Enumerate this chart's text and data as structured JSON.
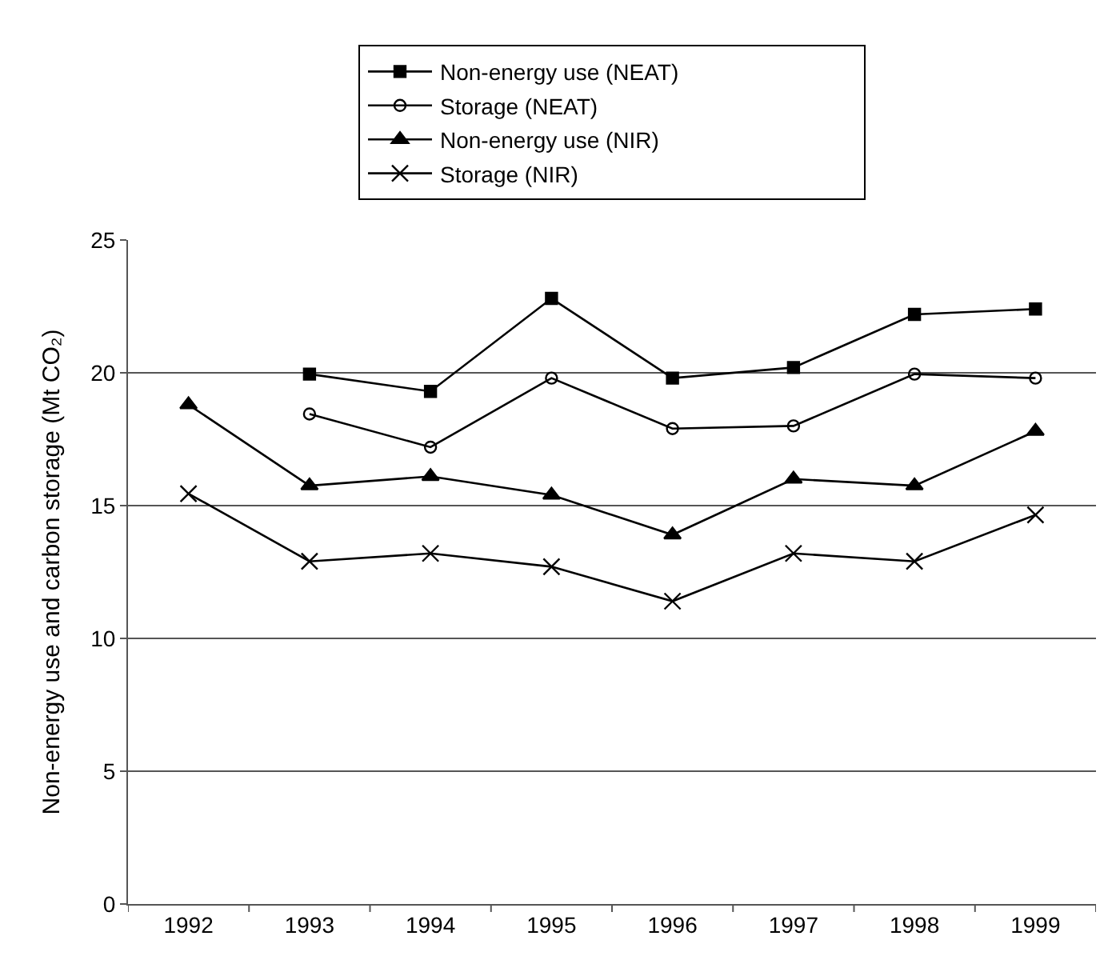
{
  "chart_data": {
    "type": "line",
    "ylabel": "Non-energy use and carbon storage (Mt CO₂)",
    "categories": [
      "1992",
      "1993",
      "1994",
      "1995",
      "1996",
      "1997",
      "1998",
      "1999"
    ],
    "ylim": [
      0,
      25
    ],
    "yticks": [
      0,
      5,
      10,
      15,
      20,
      25
    ],
    "grid": "y",
    "legend": "top",
    "line_style": "solid",
    "series": [
      {
        "name": "Non-energy use (NEAT)",
        "color": "#000000",
        "marker": "square",
        "values": [
          null,
          19.95,
          19.3,
          22.8,
          19.8,
          20.2,
          22.2,
          22.4
        ]
      },
      {
        "name": "Storage (NEAT)",
        "color": "#000000",
        "marker": "circle",
        "values": [
          null,
          18.45,
          17.2,
          19.8,
          17.9,
          18.0,
          19.95,
          19.8
        ]
      },
      {
        "name": "Non-energy use (NIR)",
        "color": "#000000",
        "marker": "triangle",
        "values": [
          18.8,
          15.75,
          16.1,
          15.4,
          13.9,
          16.0,
          15.75,
          17.8
        ]
      },
      {
        "name": "Storage (NIR)",
        "color": "#000000",
        "marker": "cross",
        "values": [
          15.45,
          12.9,
          13.2,
          12.7,
          11.4,
          13.2,
          12.9,
          14.65
        ]
      }
    ]
  }
}
